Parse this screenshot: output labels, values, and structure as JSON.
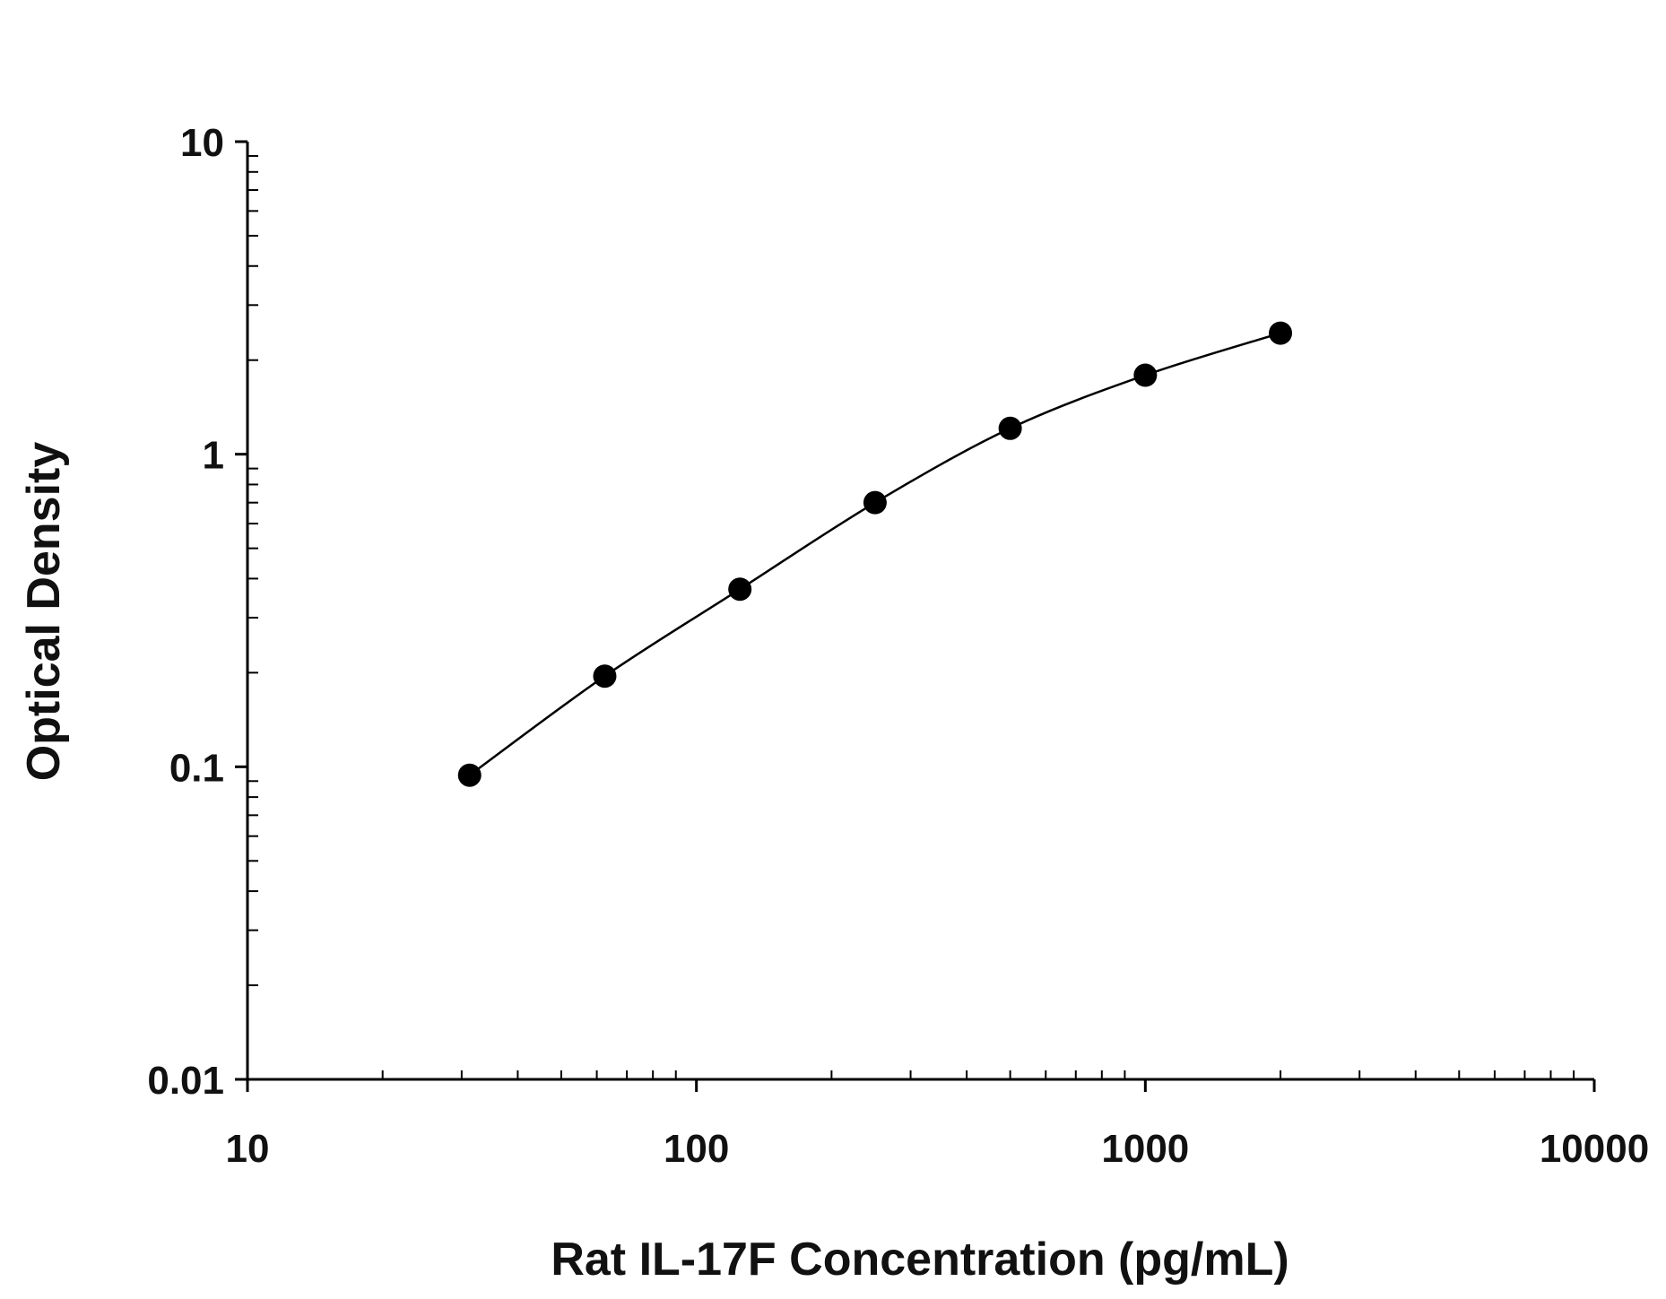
{
  "chart_data": {
    "type": "scatter",
    "title": "",
    "xlabel": "Rat IL-17F Concentration (pg/mL)",
    "ylabel": "Optical Density",
    "x_scale": "log",
    "y_scale": "log",
    "xlim": [
      10,
      10000
    ],
    "ylim": [
      0.01,
      10
    ],
    "x_ticks": [
      {
        "value": 10,
        "label": "10"
      },
      {
        "value": 100,
        "label": "100"
      },
      {
        "value": 1000,
        "label": "1000"
      },
      {
        "value": 10000,
        "label": "10000"
      }
    ],
    "y_ticks": [
      {
        "value": 0.01,
        "label": "0.01"
      },
      {
        "value": 0.1,
        "label": "0.1"
      },
      {
        "value": 1,
        "label": "1"
      },
      {
        "value": 10,
        "label": "10"
      }
    ],
    "grid": false,
    "legend": "none",
    "series": [
      {
        "marker": "filled-circle",
        "line": "smooth-fit",
        "color": "#000000",
        "x": [
          31.25,
          62.5,
          125,
          250,
          500,
          1000,
          2000
        ],
        "y": [
          0.094,
          0.195,
          0.37,
          0.7,
          1.21,
          1.79,
          2.44
        ]
      }
    ]
  }
}
